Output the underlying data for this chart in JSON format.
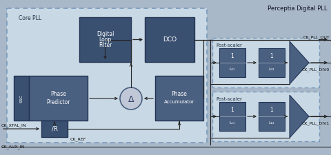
{
  "title": "Perceptia Digital PLL",
  "bg_outer": "#a8b8c8",
  "bg_core_pll": "#c8d8e4",
  "bg_post_scaler": "#c8d8e4",
  "block_dark": "#3a5070",
  "block_mid": "#4a6080",
  "delta_fill": "#c0c8d8",
  "delta_edge": "#4a6080",
  "line_color": "#222222",
  "text_dark": "#223344",
  "core_pll_label": "Core PLL",
  "post_scaler_label": "Post-scaler",
  "title_text": "Perceptia Digital PLL"
}
